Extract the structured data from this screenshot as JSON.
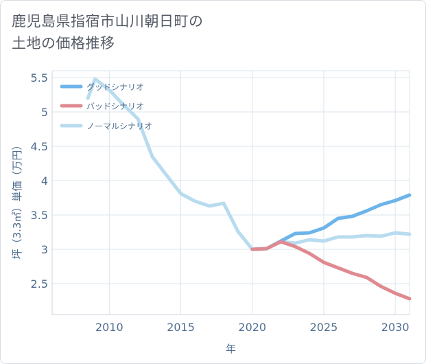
{
  "title": "鹿児島県指宿市山川朝日町の\n土地の価格推移",
  "chart_data": {
    "type": "line",
    "xlabel": "年",
    "ylabel": "坪（3.3㎡）単価（万円）",
    "xlim": [
      2006,
      2031
    ],
    "ylim": [
      2.05,
      5.6
    ],
    "xticks": [
      2010,
      2015,
      2020,
      2025,
      2030
    ],
    "yticks": [
      2.5,
      3,
      3.5,
      4,
      4.5,
      5,
      5.5
    ],
    "ytick_labels": [
      "2.5",
      "3",
      "3.5",
      "4",
      "4.5",
      "5",
      "5.5"
    ],
    "grid": true,
    "legend_position": "top-left",
    "series": [
      {
        "name": "グッドシナリオ",
        "color": "#6cb4ea",
        "x": [
          2020,
          2021,
          2022,
          2023,
          2024,
          2025,
          2026,
          2027,
          2028,
          2029,
          2030,
          2031
        ],
        "values": [
          3.0,
          3.01,
          3.12,
          3.23,
          3.24,
          3.31,
          3.45,
          3.48,
          3.56,
          3.65,
          3.71,
          3.79
        ]
      },
      {
        "name": "バッドシナリオ",
        "color": "#df8a90",
        "x": [
          2020,
          2021,
          2022,
          2023,
          2024,
          2025,
          2026,
          2027,
          2028,
          2029,
          2030,
          2031
        ],
        "values": [
          3.0,
          3.01,
          3.11,
          3.04,
          2.94,
          2.81,
          2.73,
          2.65,
          2.59,
          2.46,
          2.36,
          2.28
        ]
      },
      {
        "name": "ノーマルシナリオ",
        "color": "#b8dbef",
        "x": [
          2008.5,
          2009,
          2010,
          2011,
          2012,
          2013,
          2014,
          2015,
          2016,
          2017,
          2018,
          2019,
          2020,
          2021,
          2022,
          2023,
          2024,
          2025,
          2026,
          2027,
          2028,
          2029,
          2030,
          2031
        ],
        "values": [
          5.2,
          5.48,
          5.32,
          5.1,
          4.9,
          4.35,
          4.08,
          3.81,
          3.7,
          3.63,
          3.67,
          3.26,
          3.0,
          3.01,
          3.11,
          3.09,
          3.14,
          3.12,
          3.18,
          3.18,
          3.2,
          3.19,
          3.24,
          3.22
        ]
      }
    ]
  }
}
